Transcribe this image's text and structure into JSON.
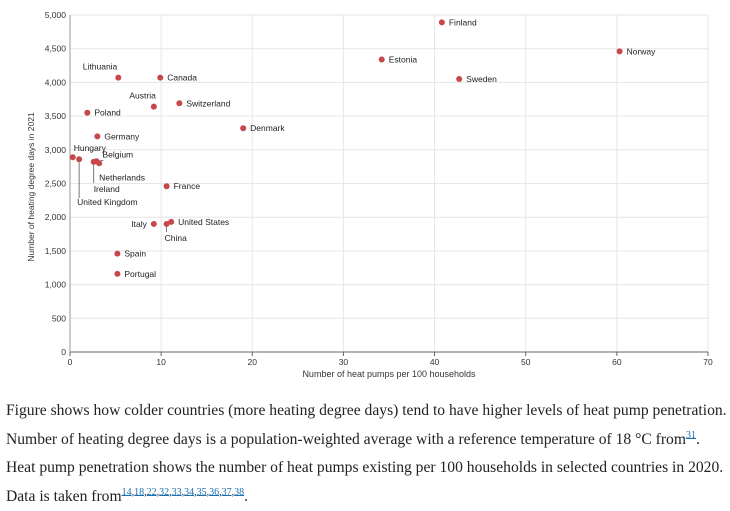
{
  "chart_data": {
    "type": "scatter",
    "title": "",
    "xlabel": "Number of heat pumps per 100 households",
    "ylabel": "Number of heating degree days in 2021",
    "xlim": [
      0,
      70
    ],
    "ylim": [
      0,
      5000
    ],
    "x_ticks": [
      "0",
      "10",
      "20",
      "30",
      "40",
      "50",
      "60",
      "70"
    ],
    "y_ticks": [
      "0",
      "500",
      "1,000",
      "1,500",
      "2,000",
      "2,500",
      "3,000",
      "3,500",
      "4,000",
      "4,500",
      "5,000"
    ],
    "grid": true,
    "point_color": "#c7474a",
    "points": [
      {
        "label": "Finland",
        "x": 40.8,
        "y": 4890
      },
      {
        "label": "Norway",
        "x": 60.3,
        "y": 4460
      },
      {
        "label": "Estonia",
        "x": 34.2,
        "y": 4340
      },
      {
        "label": "Sweden",
        "x": 42.7,
        "y": 4050
      },
      {
        "label": "Lithuania",
        "x": 5.3,
        "y": 4070
      },
      {
        "label": "Canada",
        "x": 9.9,
        "y": 4070
      },
      {
        "label": "Austria",
        "x": 9.2,
        "y": 3640
      },
      {
        "label": "Switzerland",
        "x": 12.0,
        "y": 3690
      },
      {
        "label": "Poland",
        "x": 1.9,
        "y": 3550
      },
      {
        "label": "Denmark",
        "x": 19.0,
        "y": 3320
      },
      {
        "label": "Germany",
        "x": 3.0,
        "y": 3200
      },
      {
        "label": "Hungary",
        "x": 0.3,
        "y": 2890
      },
      {
        "label": "United Kingdom",
        "x": 1.0,
        "y": 2860
      },
      {
        "label": "Ireland",
        "x": 2.6,
        "y": 2820
      },
      {
        "label": "Netherlands",
        "x": 3.2,
        "y": 2800
      },
      {
        "label": "Belgium",
        "x": 2.9,
        "y": 2830
      },
      {
        "label": "France",
        "x": 10.6,
        "y": 2460
      },
      {
        "label": "Italy",
        "x": 9.2,
        "y": 1900
      },
      {
        "label": "China",
        "x": 10.6,
        "y": 1900
      },
      {
        "label": "United States",
        "x": 11.1,
        "y": 1930
      },
      {
        "label": "Spain",
        "x": 5.2,
        "y": 1460
      },
      {
        "label": "Portugal",
        "x": 5.2,
        "y": 1160
      }
    ]
  },
  "caption": {
    "part1": "Figure shows how colder countries (more heating degree days) tend to have higher levels of heat pump penetration. Number of heating degree days is a population-weighted average with a reference temperature of 18 °C from",
    "ref1": "31",
    "part2": ". Heat pump penetration shows the number of heat pumps existing per 100 households in selected countries in 2020. Data is taken from",
    "refs": [
      "14",
      "18",
      "22",
      "32",
      "33",
      "34",
      "35",
      "36",
      "37",
      "38"
    ],
    "part3": "."
  }
}
